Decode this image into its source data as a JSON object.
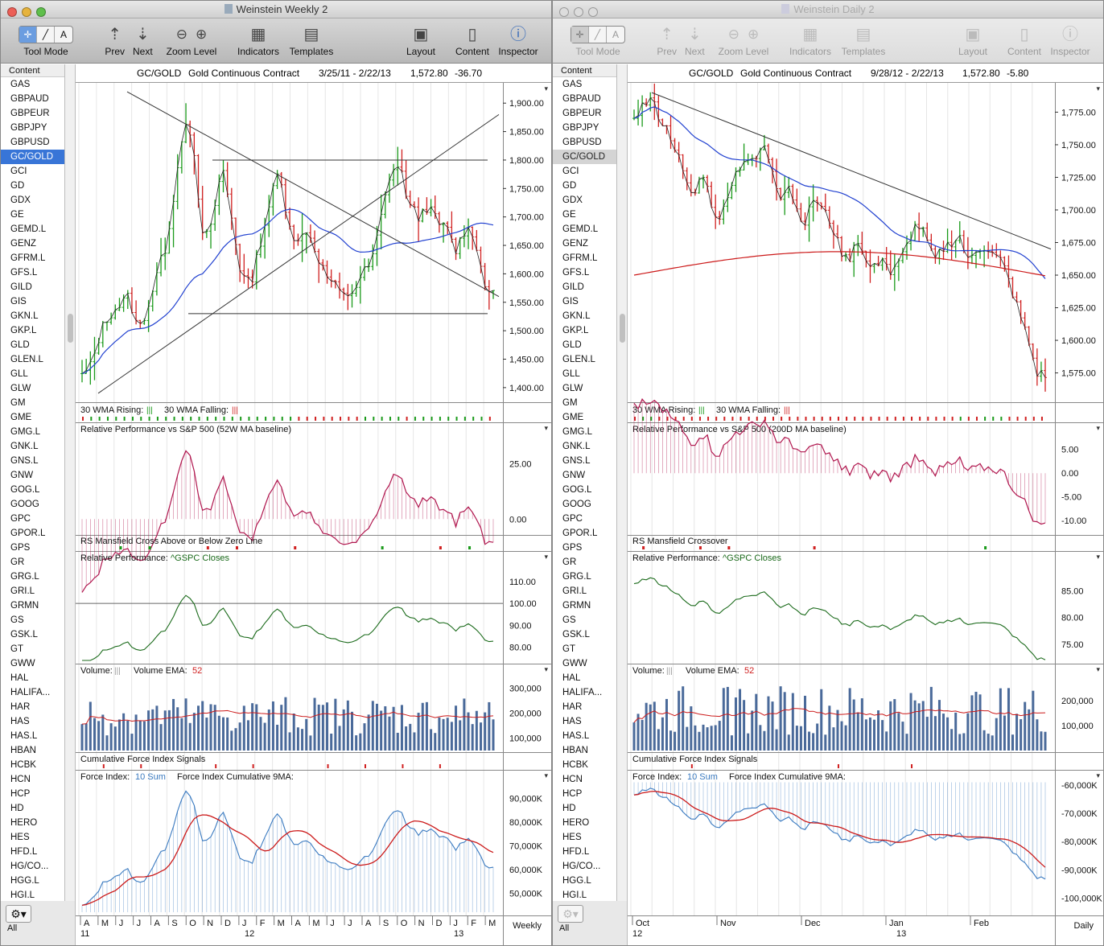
{
  "windows": [
    {
      "id": "left",
      "title": "Weinstein Weekly 2",
      "toolbar": {
        "tool_mode": "Tool Mode",
        "prev": "Prev",
        "next": "Next",
        "zoom_level": "Zoom Level",
        "indicators": "Indicators",
        "templates": "Templates",
        "layout": "Layout",
        "content": "Content",
        "inspector": "Inspector"
      },
      "sidebar_header": "Content",
      "selected_symbol": "GC/GOLD",
      "bottom_label": "All",
      "header": {
        "symbol": "GC/GOLD",
        "name": "Gold Continuous Contract",
        "range": "3/25/11 - 2/22/13",
        "last": "1,572.80",
        "change": "-36.70"
      },
      "price_axis": [
        "1,900.00",
        "1,850.00",
        "1,800.00",
        "1,750.00",
        "1,700.00",
        "1,650.00",
        "1,600.00",
        "1,550.00",
        "1,500.00",
        "1,450.00",
        "1,400.00"
      ],
      "panels": {
        "wma": {
          "label": "30 WMA Rising:",
          "label2": "30 WMA Falling:"
        },
        "rp_sp": {
          "label": "Relative Performance vs S&P 500 (52W MA baseline)",
          "axis": [
            "25.00",
            "0.00"
          ]
        },
        "rs_cross": {
          "label": "RS Mansfield Cross Above or Below Zero Line"
        },
        "rp_gspc": {
          "label": "Relative Performance:",
          "series": "^GSPC Closes",
          "axis": [
            "110.00",
            "100.00",
            "90.00",
            "80.00"
          ]
        },
        "volume": {
          "label": "Volume:",
          "ema_label": "Volume EMA:",
          "ema_period": "52",
          "axis": [
            "300,000",
            "200,000",
            "100,000"
          ]
        },
        "cfis": {
          "label": "Cumulative Force Index Signals"
        },
        "force": {
          "label": "Force Index:",
          "sum": "10 Sum",
          "label2": "Force Index Cumulative 9MA:",
          "axis": [
            "90,000K",
            "80,000K",
            "70,000K",
            "60,000K",
            "50,000K"
          ]
        }
      },
      "x_months": [
        "A",
        "M",
        "J",
        "J",
        "A",
        "S",
        "O",
        "N",
        "D",
        "J",
        "F",
        "M",
        "A",
        "M",
        "J",
        "J",
        "A",
        "S",
        "O",
        "N",
        "D",
        "J",
        "F",
        "M"
      ],
      "x_years": [
        "11",
        "12",
        "13"
      ],
      "periodicity": "Weekly"
    },
    {
      "id": "right",
      "title": "Weinstein Daily 2",
      "toolbar": {
        "tool_mode": "Tool Mode",
        "prev": "Prev",
        "next": "Next",
        "zoom_level": "Zoom Level",
        "indicators": "Indicators",
        "templates": "Templates",
        "layout": "Layout",
        "content": "Content",
        "inspector": "Inspector"
      },
      "sidebar_header": "Content",
      "selected_symbol": "GC/GOLD",
      "bottom_label": "All",
      "header": {
        "symbol": "GC/GOLD",
        "name": "Gold Continuous Contract",
        "range": "9/28/12 - 2/22/13",
        "last": "1,572.80",
        "change": "-5.80"
      },
      "price_axis": [
        "1,775.00",
        "1,750.00",
        "1,725.00",
        "1,700.00",
        "1,675.00",
        "1,650.00",
        "1,625.00",
        "1,600.00",
        "1,575.00"
      ],
      "panels": {
        "wma": {
          "label": "30 WMA Rising:",
          "label2": "30 WMA Falling:"
        },
        "rp_sp": {
          "label": "Relative Performance vs S&P 500 (200D MA baseline)",
          "axis": [
            "5.00",
            "0.00",
            "-5.00",
            "-10.00"
          ]
        },
        "rs_cross": {
          "label": "RS Mansfield Crossover"
        },
        "rp_gspc": {
          "label": "Relative Performance:",
          "series": "^GSPC Closes",
          "axis": [
            "85.00",
            "80.00",
            "75.00"
          ]
        },
        "volume": {
          "label": "Volume:",
          "ema_label": "Volume EMA:",
          "ema_period": "52",
          "axis": [
            "200,000",
            "100,000"
          ]
        },
        "cfis": {
          "label": "Cumulative Force Index Signals"
        },
        "force": {
          "label": "Force Index:",
          "sum": "10 Sum",
          "label2": "Force Index Cumulative 9MA:",
          "axis": [
            "-60,000K",
            "-70,000K",
            "-80,000K",
            "-90,000K",
            "-100,000K"
          ]
        }
      },
      "x_months": [
        "Oct",
        "Nov",
        "Dec",
        "Jan",
        "Feb"
      ],
      "x_years": [
        "12",
        "13"
      ],
      "periodicity": "Daily"
    }
  ],
  "symbols": [
    "GAS",
    "GBPAUD",
    "GBPEUR",
    "GBPJPY",
    "GBPUSD",
    "GC/GOLD",
    "GCI",
    "GD",
    "GDX",
    "GE",
    "GEMD.L",
    "GENZ",
    "GFRM.L",
    "GFS.L",
    "GILD",
    "GIS",
    "GKN.L",
    "GKP.L",
    "GLD",
    "GLEN.L",
    "GLL",
    "GLW",
    "GM",
    "GME",
    "GMG.L",
    "GNK.L",
    "GNS.L",
    "GNW",
    "GOG.L",
    "GOOG",
    "GPC",
    "GPOR.L",
    "GPS",
    "GR",
    "GRG.L",
    "GRI.L",
    "GRMN",
    "GS",
    "GSK.L",
    "GT",
    "GWW",
    "HAL",
    "HALIFA...",
    "HAR",
    "HAS",
    "HAS.L",
    "HBAN",
    "HCBK",
    "HCN",
    "HCP",
    "HD",
    "HERO",
    "HES",
    "HFD.L",
    "HG/CO...",
    "HGG.L",
    "HGI.L"
  ],
  "colors": {
    "up": "#1a9a1a",
    "down": "#d02020",
    "ma30": "#2040d0",
    "ma200": "#cc1a1a",
    "rp": "#b0164e",
    "gspc": "#1a6a1a",
    "volume": "#4a6a9a",
    "force": "#3a7ac0",
    "trend": "#333333"
  },
  "chart_data": [
    {
      "type": "candlestick",
      "title": "GC/GOLD Gold Continuous Contract (Weekly)",
      "x_range": [
        "3/25/11",
        "2/22/13"
      ],
      "ylim": [
        1380,
        1930
      ],
      "approx_closes": [
        1420,
        1440,
        1500,
        1530,
        1545,
        1560,
        1500,
        1540,
        1600,
        1650,
        1760,
        1880,
        1800,
        1650,
        1700,
        1790,
        1700,
        1600,
        1580,
        1650,
        1720,
        1780,
        1700,
        1650,
        1680,
        1640,
        1600,
        1580,
        1560,
        1570,
        1600,
        1620,
        1700,
        1780,
        1790,
        1720,
        1700,
        1720,
        1690,
        1680,
        1640,
        1680,
        1670,
        1580,
        1573
      ],
      "annotations": {
        "horizontal_lines": [
          1800,
          1530
        ],
        "support_resistance": "triangle trendlines"
      }
    },
    {
      "type": "candlestick",
      "title": "GC/GOLD Gold Continuous Contract (Daily)",
      "x_range": [
        "9/28/12",
        "2/22/13"
      ],
      "ylim": [
        1555,
        1795
      ],
      "approx_closes": [
        1772,
        1780,
        1785,
        1770,
        1760,
        1745,
        1720,
        1710,
        1730,
        1705,
        1690,
        1715,
        1730,
        1740,
        1735,
        1750,
        1735,
        1710,
        1720,
        1700,
        1690,
        1710,
        1700,
        1690,
        1670,
        1660,
        1680,
        1660,
        1655,
        1665,
        1650,
        1660,
        1675,
        1690,
        1680,
        1660,
        1670,
        1675,
        1680,
        1660,
        1670,
        1672,
        1665,
        1660,
        1640,
        1620,
        1600,
        1575,
        1573
      ],
      "annotations": {
        "downtrend_line": [
          1790,
          1672
        ]
      }
    }
  ]
}
